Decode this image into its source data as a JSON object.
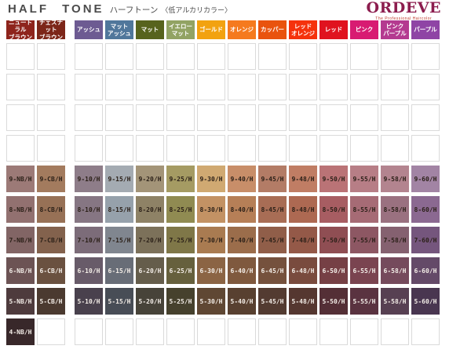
{
  "title": {
    "main": "HALF TONE",
    "kana": "ハーフトーン",
    "note": "〈低アルカリカラー〉"
  },
  "logo": {
    "name": "ORDEVE",
    "tagline": "The Professional Haircolor",
    "color": "#8c1d4e"
  },
  "chart_data": {
    "type": "table",
    "title": "HALF TONE ハーフトーン 〈低アルカリカラー〉",
    "brand": "ORDEVE",
    "legend_position": "top",
    "columns": [
      {
        "name": "ニュートラルブラウン",
        "lines": [
          "ニュートラル",
          "ブラウン"
        ],
        "color": "#8e241c"
      },
      {
        "name": "チェスナットブラウン",
        "lines": [
          "チェスナット",
          "ブラウン"
        ],
        "color": "#7c2619"
      },
      {
        "name": "アッシュ",
        "lines": [
          "アッシュ"
        ],
        "color": "#6d5b92"
      },
      {
        "name": "マットアッシュ",
        "lines": [
          "マット",
          "アッシュ"
        ],
        "color": "#50779b"
      },
      {
        "name": "マット",
        "lines": [
          "マット"
        ],
        "color": "#57631d"
      },
      {
        "name": "イエローマット",
        "lines": [
          "イエロー",
          "マット"
        ],
        "color": "#92a363"
      },
      {
        "name": "ゴールド",
        "lines": [
          "ゴールド"
        ],
        "color": "#f2a210"
      },
      {
        "name": "オレンジ",
        "lines": [
          "オレンジ"
        ],
        "color": "#f57a1e"
      },
      {
        "name": "カッパー",
        "lines": [
          "カッパー"
        ],
        "color": "#e9530e"
      },
      {
        "name": "レッドオレンジ",
        "lines": [
          "レッド",
          "オレンジ"
        ],
        "color": "#f5320c"
      },
      {
        "name": "レッド",
        "lines": [
          "レッド"
        ],
        "color": "#e0131f"
      },
      {
        "name": "ピンク",
        "lines": [
          "ピンク"
        ],
        "color": "#d81b72"
      },
      {
        "name": "ピンクパープル",
        "lines": [
          "ピンク",
          "パープル"
        ],
        "color": "#b43a90"
      },
      {
        "name": "パープル",
        "lines": [
          "パープル"
        ],
        "color": "#8f44a5"
      }
    ],
    "empty_top_rows": 4,
    "rows": [
      {
        "level": "9",
        "text_color": "#2b2018",
        "cells": [
          {
            "code": "9-NB/H",
            "color": "#9c7a77"
          },
          {
            "code": "9-CB/H",
            "color": "#a37b5e"
          },
          {
            "code": "9-10/H",
            "color": "#8e7d89"
          },
          {
            "code": "9-15/H",
            "color": "#a4abb2"
          },
          {
            "code": "9-20/H",
            "color": "#a39478"
          },
          {
            "code": "9-25/H",
            "color": "#a59b63"
          },
          {
            "code": "9-30/H",
            "color": "#d0a972"
          },
          {
            "code": "9-40/H",
            "color": "#c88e69"
          },
          {
            "code": "9-45/H",
            "color": "#b37c66"
          },
          {
            "code": "9-48/H",
            "color": "#c07d64"
          },
          {
            "code": "9-50/H",
            "color": "#ba7376"
          },
          {
            "code": "9-55/H",
            "color": "#b77e86"
          },
          {
            "code": "9-58/H",
            "color": "#b3848f"
          },
          {
            "code": "9-60/H",
            "color": "#a284a4"
          }
        ]
      },
      {
        "level": "8",
        "text_color": "#2b2018",
        "cells": [
          {
            "code": "8-NB/H",
            "color": "#927170"
          },
          {
            "code": "8-CB/H",
            "color": "#977156"
          },
          {
            "code": "8-10/H",
            "color": "#867683"
          },
          {
            "code": "8-15/H",
            "color": "#96a1ab"
          },
          {
            "code": "8-20/H",
            "color": "#8e8266"
          },
          {
            "code": "8-25/H",
            "color": "#908b52"
          },
          {
            "code": "8-30/H",
            "color": "#c39264"
          },
          {
            "code": "8-40/H",
            "color": "#b67f57"
          },
          {
            "code": "8-45/H",
            "color": "#a86d55"
          },
          {
            "code": "8-48/H",
            "color": "#ad6952"
          },
          {
            "code": "8-50/H",
            "color": "#a75d62"
          },
          {
            "code": "8-55/H",
            "color": "#a66b75"
          },
          {
            "code": "8-58/H",
            "color": "#9a7180"
          },
          {
            "code": "8-60/H",
            "color": "#8b6991"
          }
        ]
      },
      {
        "level": "7",
        "text_color": "#2b2018",
        "cells": [
          {
            "code": "7-NB/H",
            "color": "#826565"
          },
          {
            "code": "7-CB/H",
            "color": "#83624d"
          },
          {
            "code": "7-10/H",
            "color": "#7c6c79"
          },
          {
            "code": "7-15/H",
            "color": "#80868f"
          },
          {
            "code": "7-20/H",
            "color": "#7c715a"
          },
          {
            "code": "7-25/H",
            "color": "#7f7748"
          },
          {
            "code": "7-30/H",
            "color": "#a97b51"
          },
          {
            "code": "7-40/H",
            "color": "#9b6d4b"
          },
          {
            "code": "7-45/H",
            "color": "#905e49"
          },
          {
            "code": "7-48/H",
            "color": "#945948"
          },
          {
            "code": "7-50/H",
            "color": "#8f4e53"
          },
          {
            "code": "7-55/H",
            "color": "#8d5763"
          },
          {
            "code": "7-58/H",
            "color": "#856170"
          },
          {
            "code": "7-60/H",
            "color": "#75567d"
          }
        ]
      },
      {
        "level": "6",
        "text_color": "#f3ede7",
        "cells": [
          {
            "code": "6-NB/H",
            "color": "#6c5354"
          },
          {
            "code": "6-CB/H",
            "color": "#6a5140"
          },
          {
            "code": "6-10/H",
            "color": "#685b69"
          },
          {
            "code": "6-15/H",
            "color": "#686d77"
          },
          {
            "code": "6-20/H",
            "color": "#655d4b"
          },
          {
            "code": "6-25/H",
            "color": "#66603d"
          },
          {
            "code": "6-30/H",
            "color": "#8b6444"
          },
          {
            "code": "6-40/H",
            "color": "#7f593e"
          },
          {
            "code": "6-45/H",
            "color": "#75513d"
          },
          {
            "code": "6-48/H",
            "color": "#794b3e"
          },
          {
            "code": "6-50/H",
            "color": "#764045"
          },
          {
            "code": "6-55/H",
            "color": "#7a4450"
          },
          {
            "code": "6-58/H",
            "color": "#754a5c"
          },
          {
            "code": "6-60/H",
            "color": "#644a68"
          }
        ]
      },
      {
        "level": "5",
        "text_color": "#f3ede7",
        "cells": [
          {
            "code": "5-NB/H",
            "color": "#4e3b3d"
          },
          {
            "code": "5-CB/H",
            "color": "#4b3a30"
          },
          {
            "code": "5-10/H",
            "color": "#49414d"
          },
          {
            "code": "5-15/H",
            "color": "#484d56"
          },
          {
            "code": "5-20/H",
            "color": "#474339"
          },
          {
            "code": "5-25/H",
            "color": "#46412d"
          },
          {
            "code": "5-30/H",
            "color": "#5f4733"
          },
          {
            "code": "5-40/H",
            "color": "#584030"
          },
          {
            "code": "5-45/H",
            "color": "#533b31"
          },
          {
            "code": "5-48/H",
            "color": "#553730"
          },
          {
            "code": "5-50/H",
            "color": "#542f36"
          },
          {
            "code": "5-55/H",
            "color": "#5a3340"
          },
          {
            "code": "5-58/H",
            "color": "#574052"
          },
          {
            "code": "5-60/H",
            "color": "#493650"
          }
        ]
      },
      {
        "level": "4",
        "text_color": "#f3ede7",
        "cells": [
          {
            "code": "4-NB/H",
            "color": "#38282a"
          },
          null,
          null,
          null,
          null,
          null,
          null,
          null,
          null,
          null,
          null,
          null,
          null,
          null
        ]
      }
    ]
  }
}
